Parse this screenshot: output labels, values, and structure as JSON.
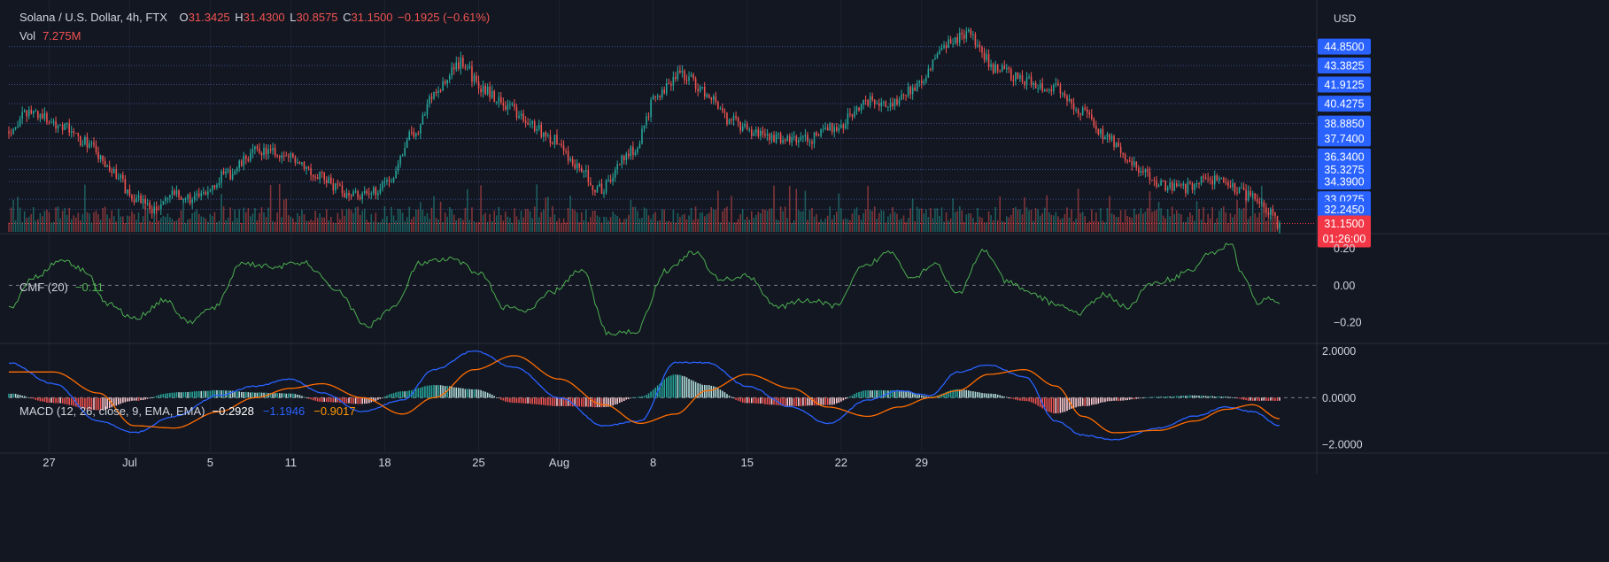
{
  "colors": {
    "background": "#131722",
    "grid": "#1e2230",
    "text": "#d1d4dc",
    "up": "#26a69a",
    "down": "#ef5350",
    "level_tag": "#2962ff",
    "price_tag": "#f23645",
    "cmf_line": "#4caf50",
    "macd_line": "#2962ff",
    "signal_line": "#ff6d00"
  },
  "header": {
    "title": "Solana / U.S. Dollar, 4h, FTX",
    "o_label": "O",
    "o_value": "31.3425",
    "h_label": "H",
    "h_value": "31.4300",
    "l_label": "L",
    "l_value": "30.8575",
    "c_label": "C",
    "c_value": "31.1500",
    "change": "−0.1925 (−0.61%)",
    "vol_label": "Vol",
    "vol_value": "7.275M"
  },
  "axis": {
    "currency": "USD",
    "price_levels": [
      "44.8500",
      "43.3825",
      "41.9125",
      "40.4275",
      "38.8850",
      "37.7400",
      "36.3400",
      "35.3275",
      "34.3900",
      "33.0275",
      "32.2450"
    ],
    "current_price": "31.1500",
    "countdown": "01:26:00",
    "cmf_ticks": [
      "0.20",
      "0.00",
      "−0.20"
    ],
    "macd_ticks": [
      "2.0000",
      "0.0000",
      "−2.0000"
    ],
    "x_ticks": [
      "27",
      "Jul",
      "5",
      "11",
      "18",
      "25",
      "Aug",
      "8",
      "15",
      "22",
      "29"
    ]
  },
  "cmf": {
    "label": "CMF (20)",
    "value": "−0.11"
  },
  "macd": {
    "label": "MACD (12, 26, close, 9, EMA, EMA)",
    "hist_value": "−0.2928",
    "macd_value": "−1.1946",
    "signal_value": "−0.9017"
  },
  "chart_data": {
    "type": "candlestick",
    "symbol": "Solana / U.S. Dollar",
    "interval": "4h",
    "exchange": "FTX",
    "price_ylim": [
      30.5,
      46.4
    ],
    "cmf_ylim": [
      -0.3,
      0.26
    ],
    "macd_ylim": [
      -2.3,
      2.25
    ],
    "date_ticks": [
      "27",
      "Jul",
      "5",
      "11",
      "18",
      "25",
      "Aug",
      "8",
      "15",
      "22",
      "29"
    ],
    "close_path": [
      [
        0,
        38.5
      ],
      [
        10,
        39.8
      ],
      [
        22,
        38.9
      ],
      [
        34,
        37.5
      ],
      [
        46,
        35.2
      ],
      [
        56,
        33.2
      ],
      [
        66,
        32.2
      ],
      [
        72,
        33.3
      ],
      [
        84,
        33.1
      ],
      [
        96,
        34.8
      ],
      [
        112,
        36.8
      ],
      [
        128,
        36.2
      ],
      [
        138,
        34.9
      ],
      [
        150,
        33.6
      ],
      [
        160,
        33.3
      ],
      [
        170,
        34.6
      ],
      [
        180,
        38.0
      ],
      [
        192,
        41.6
      ],
      [
        202,
        43.6
      ],
      [
        212,
        41.5
      ],
      [
        222,
        40.4
      ],
      [
        232,
        38.9
      ],
      [
        244,
        37.6
      ],
      [
        254,
        35.6
      ],
      [
        264,
        33.8
      ],
      [
        278,
        36.7
      ],
      [
        290,
        40.9
      ],
      [
        300,
        42.8
      ],
      [
        312,
        41.3
      ],
      [
        322,
        39.1
      ],
      [
        334,
        38.1
      ],
      [
        344,
        37.8
      ],
      [
        356,
        37.6
      ],
      [
        370,
        38.7
      ],
      [
        384,
        40.7
      ],
      [
        394,
        40.5
      ],
      [
        406,
        41.8
      ],
      [
        418,
        44.9
      ],
      [
        428,
        45.8
      ],
      [
        442,
        43.1
      ],
      [
        454,
        42.2
      ],
      [
        468,
        41.6
      ],
      [
        478,
        40.0
      ],
      [
        490,
        37.9
      ],
      [
        500,
        36.1
      ],
      [
        508,
        34.9
      ],
      [
        516,
        34.1
      ],
      [
        524,
        33.9
      ],
      [
        536,
        34.5
      ],
      [
        546,
        34.1
      ],
      [
        554,
        33.3
      ],
      [
        562,
        32.2
      ],
      [
        568,
        31.15
      ]
    ],
    "cmf_path": [
      [
        0,
        -0.12
      ],
      [
        12,
        0.05
      ],
      [
        24,
        0.14
      ],
      [
        34,
        0.08
      ],
      [
        44,
        -0.1
      ],
      [
        56,
        -0.18
      ],
      [
        70,
        -0.08
      ],
      [
        80,
        -0.2
      ],
      [
        92,
        -0.12
      ],
      [
        104,
        0.12
      ],
      [
        118,
        0.1
      ],
      [
        132,
        0.12
      ],
      [
        146,
        -0.02
      ],
      [
        160,
        -0.22
      ],
      [
        172,
        -0.12
      ],
      [
        184,
        0.12
      ],
      [
        198,
        0.14
      ],
      [
        210,
        0.07
      ],
      [
        222,
        -0.12
      ],
      [
        232,
        -0.14
      ],
      [
        242,
        -0.04
      ],
      [
        256,
        0.08
      ],
      [
        268,
        -0.26
      ],
      [
        280,
        -0.25
      ],
      [
        294,
        0.08
      ],
      [
        306,
        0.18
      ],
      [
        318,
        0.03
      ],
      [
        330,
        0.05
      ],
      [
        344,
        -0.12
      ],
      [
        356,
        -0.08
      ],
      [
        370,
        -0.11
      ],
      [
        382,
        0.1
      ],
      [
        394,
        0.18
      ],
      [
        404,
        0.04
      ],
      [
        414,
        0.12
      ],
      [
        424,
        -0.05
      ],
      [
        436,
        0.19
      ],
      [
        446,
        0.02
      ],
      [
        456,
        -0.04
      ],
      [
        468,
        -0.1
      ],
      [
        478,
        -0.15
      ],
      [
        490,
        -0.05
      ],
      [
        500,
        -0.12
      ],
      [
        510,
        0.0
      ],
      [
        518,
        0.03
      ],
      [
        528,
        0.08
      ],
      [
        538,
        0.18
      ],
      [
        546,
        0.22
      ],
      [
        552,
        0.05
      ],
      [
        558,
        -0.1
      ],
      [
        564,
        -0.07
      ],
      [
        568,
        -0.11
      ]
    ],
    "macd_path": [
      [
        0,
        1.5
      ],
      [
        20,
        0.6
      ],
      [
        40,
        -1.0
      ],
      [
        56,
        -1.5
      ],
      [
        74,
        -0.8
      ],
      [
        94,
        0.1
      ],
      [
        110,
        0.5
      ],
      [
        126,
        0.8
      ],
      [
        140,
        0.2
      ],
      [
        158,
        -0.6
      ],
      [
        176,
        -0.1
      ],
      [
        190,
        1.2
      ],
      [
        208,
        2.0
      ],
      [
        226,
        1.3
      ],
      [
        246,
        0.0
      ],
      [
        266,
        -1.2
      ],
      [
        282,
        -1.0
      ],
      [
        298,
        1.5
      ],
      [
        312,
        1.5
      ],
      [
        330,
        0.5
      ],
      [
        350,
        -0.4
      ],
      [
        366,
        -1.1
      ],
      [
        384,
        -0.1
      ],
      [
        398,
        0.3
      ],
      [
        412,
        0.1
      ],
      [
        424,
        1.1
      ],
      [
        438,
        1.4
      ],
      [
        454,
        0.9
      ],
      [
        468,
        -1.0
      ],
      [
        480,
        -1.6
      ],
      [
        494,
        -1.8
      ],
      [
        514,
        -1.3
      ],
      [
        530,
        -0.8
      ],
      [
        544,
        -0.4
      ],
      [
        556,
        -0.6
      ],
      [
        568,
        -1.19
      ]
    ],
    "signal_path": [
      [
        0,
        1.1
      ],
      [
        20,
        1.1
      ],
      [
        40,
        0.2
      ],
      [
        56,
        -1.2
      ],
      [
        74,
        -1.3
      ],
      [
        94,
        -0.6
      ],
      [
        110,
        0.0
      ],
      [
        126,
        0.4
      ],
      [
        140,
        0.6
      ],
      [
        158,
        0.0
      ],
      [
        176,
        -0.7
      ],
      [
        190,
        0.0
      ],
      [
        208,
        1.2
      ],
      [
        226,
        1.8
      ],
      [
        246,
        0.8
      ],
      [
        266,
        -0.3
      ],
      [
        282,
        -1.1
      ],
      [
        298,
        -0.7
      ],
      [
        312,
        0.3
      ],
      [
        330,
        1.0
      ],
      [
        350,
        0.4
      ],
      [
        366,
        -0.4
      ],
      [
        384,
        -0.8
      ],
      [
        398,
        -0.4
      ],
      [
        412,
        0.0
      ],
      [
        424,
        0.3
      ],
      [
        438,
        1.0
      ],
      [
        454,
        1.2
      ],
      [
        468,
        0.5
      ],
      [
        480,
        -0.8
      ],
      [
        494,
        -1.5
      ],
      [
        514,
        -1.4
      ],
      [
        530,
        -1.0
      ],
      [
        544,
        -0.5
      ],
      [
        556,
        -0.3
      ],
      [
        568,
        -0.9
      ]
    ]
  }
}
